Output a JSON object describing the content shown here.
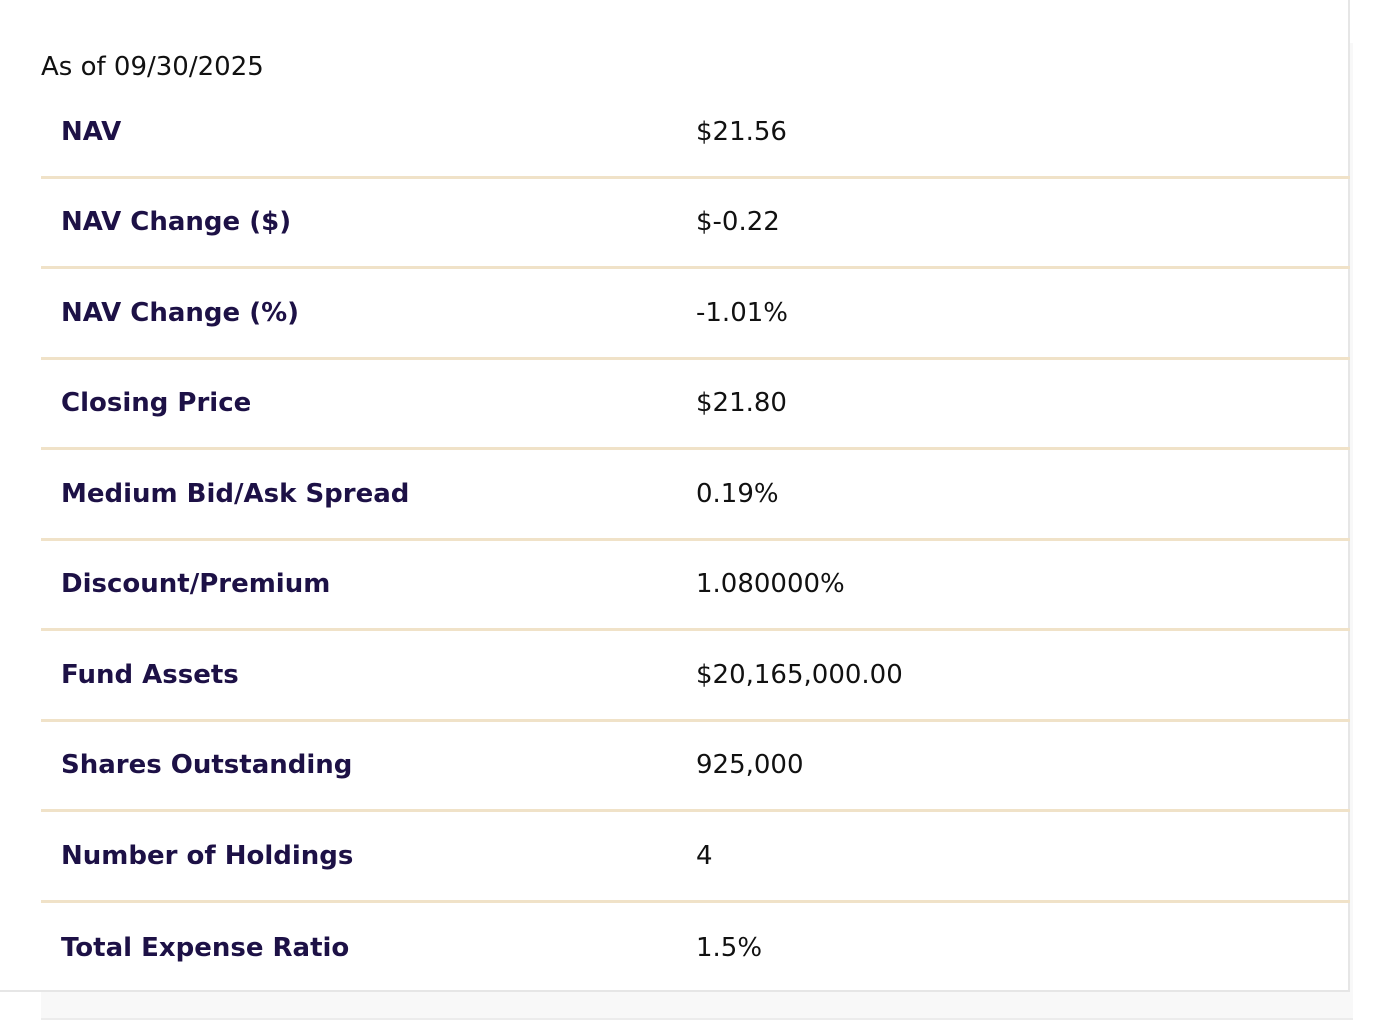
{
  "as_of": "As of 09/30/2025",
  "stats": [
    {
      "label": "NAV",
      "value": "$21.56"
    },
    {
      "label": "NAV Change ($)",
      "value": "$-0.22"
    },
    {
      "label": "NAV Change (%)",
      "value": "-1.01%"
    },
    {
      "label": "Closing Price",
      "value": "$21.80"
    },
    {
      "label": "Medium Bid/Ask Spread",
      "value": "0.19%"
    },
    {
      "label": "Discount/Premium",
      "value": "1.080000%"
    },
    {
      "label": "Fund Assets",
      "value": "$20,165,000.00"
    },
    {
      "label": "Shares Outstanding",
      "value": "925,000"
    },
    {
      "label": "Number of Holdings",
      "value": "4"
    },
    {
      "label": "Total Expense Ratio",
      "value": "1.5%"
    }
  ],
  "colors": {
    "label": "#1d1146",
    "divider": "#f0e2c8",
    "value": "#111111"
  }
}
